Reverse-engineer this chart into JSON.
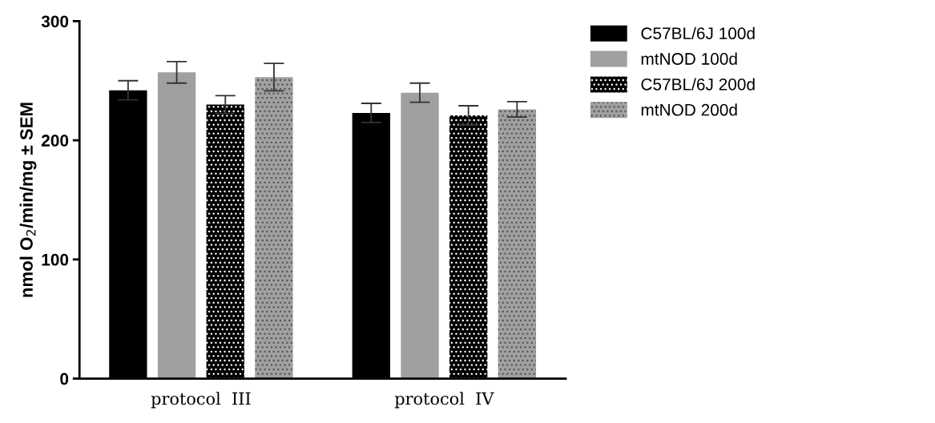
{
  "chart_data": {
    "type": "bar",
    "ylabel": "nmol O$_{2}$/min/mg ± SEM",
    "categories": [
      "protocol  III",
      "protocol  IV"
    ],
    "series": [
      {
        "name": "C57BL/6J 100d",
        "color": "#000000",
        "values": [
          242,
          223
        ],
        "errors": [
          8,
          8
        ]
      },
      {
        "name": "mtNOD 100d",
        "color": "#a0a0a2",
        "values": [
          257,
          240
        ],
        "errors": [
          9,
          8
        ]
      },
      {
        "name": "C57BL/6J 200d",
        "color": "#000000",
        "values": [
          230,
          221
        ],
        "errors": [
          7.5,
          8
        ]
      },
      {
        "name": "mtNOD 200d",
        "color": "#a0a0a2",
        "values": [
          253,
          226
        ],
        "errors": [
          11.5,
          6.5
        ]
      }
    ],
    "ylim": [
      0,
      300
    ],
    "yticks": [
      0,
      100,
      200,
      300
    ],
    "legend": "top right",
    "grid": false
  }
}
